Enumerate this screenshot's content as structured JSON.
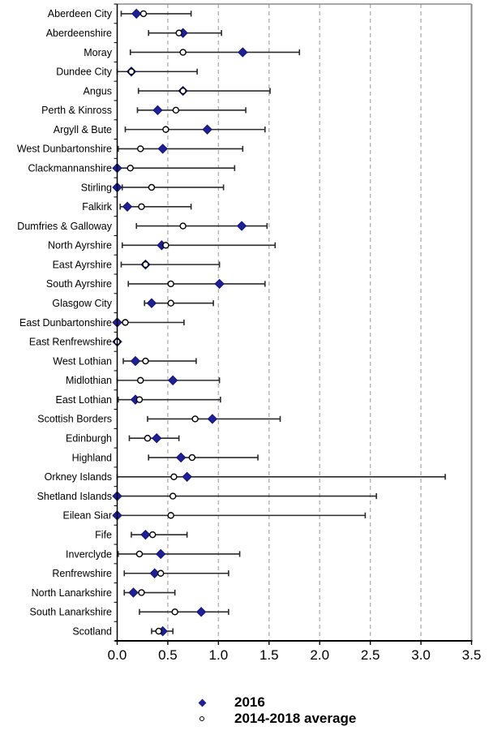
{
  "chart_data": {
    "type": "scatter",
    "subtype": "dot-plot-with-error-bars",
    "title": "",
    "xlabel": "",
    "ylabel": "",
    "x_axis": {
      "min": 0.0,
      "max": 3.5,
      "tick_step": 0.5,
      "tick_labels": [
        "0.0",
        "0.5",
        "1.0",
        "1.5",
        "2.0",
        "2.5",
        "3.0",
        "3.5"
      ],
      "gridlines": [
        0.5,
        1.0,
        1.5,
        2.0,
        2.5,
        3.0
      ],
      "grid_style": "dashed"
    },
    "legend": {
      "position": "bottom",
      "entries": [
        {
          "label": "2016",
          "marker": "filled-diamond",
          "color": "#1f1f96"
        },
        {
          "label": "2014-2018 average",
          "marker": "open-circle",
          "color": "#000000"
        }
      ]
    },
    "series_note": "Each row: filled diamond = 2016 value, open circle = 2014-2018 average, horizontal bar = confidence interval of the average",
    "rows": [
      {
        "category": "Aberdeen City",
        "y2016": 0.19,
        "avg": 0.26,
        "ci_low": 0.04,
        "ci_high": 0.73
      },
      {
        "category": "Aberdeenshire",
        "y2016": 0.65,
        "avg": 0.61,
        "ci_low": 0.31,
        "ci_high": 1.03
      },
      {
        "category": "Moray",
        "y2016": 1.24,
        "avg": 0.65,
        "ci_low": 0.13,
        "ci_high": 1.8
      },
      {
        "category": "Dundee City",
        "y2016": 0.14,
        "avg": 0.14,
        "ci_low": 0.0,
        "ci_high": 0.79
      },
      {
        "category": "Angus",
        "y2016": 0.65,
        "avg": 0.65,
        "ci_low": 0.21,
        "ci_high": 1.51
      },
      {
        "category": "Perth & Kinross",
        "y2016": 0.4,
        "avg": 0.58,
        "ci_low": 0.2,
        "ci_high": 1.27
      },
      {
        "category": "Argyll & Bute",
        "y2016": 0.89,
        "avg": 0.48,
        "ci_low": 0.08,
        "ci_high": 1.46
      },
      {
        "category": "West Dunbartonshire",
        "y2016": 0.45,
        "avg": 0.23,
        "ci_low": 0.01,
        "ci_high": 1.24
      },
      {
        "category": "Clackmannanshire",
        "y2016": 0.0,
        "avg": 0.13,
        "ci_low": 0.0,
        "ci_high": 1.16
      },
      {
        "category": "Stirling",
        "y2016": 0.0,
        "avg": 0.34,
        "ci_low": 0.05,
        "ci_high": 1.05
      },
      {
        "category": "Falkirk",
        "y2016": 0.1,
        "avg": 0.24,
        "ci_low": 0.03,
        "ci_high": 0.73
      },
      {
        "category": "Dumfries & Galloway",
        "y2016": 1.23,
        "avg": 0.65,
        "ci_low": 0.19,
        "ci_high": 1.48
      },
      {
        "category": "North Ayrshire",
        "y2016": 0.44,
        "avg": 0.48,
        "ci_low": 0.05,
        "ci_high": 1.56
      },
      {
        "category": "East Ayrshire",
        "y2016": 0.28,
        "avg": 0.28,
        "ci_low": 0.04,
        "ci_high": 1.01
      },
      {
        "category": "South Ayrshire",
        "y2016": 1.01,
        "avg": 0.53,
        "ci_low": 0.11,
        "ci_high": 1.46
      },
      {
        "category": "Glasgow City",
        "y2016": 0.34,
        "avg": 0.53,
        "ci_low": 0.27,
        "ci_high": 0.95
      },
      {
        "category": "East Dunbartonshire",
        "y2016": 0.0,
        "avg": 0.08,
        "ci_low": 0.0,
        "ci_high": 0.66
      },
      {
        "category": "East Renfrewshire",
        "y2016": 0.0,
        "avg": 0.0,
        "ci_low": 0.0,
        "ci_high": 0.0
      },
      {
        "category": "West Lothian",
        "y2016": 0.18,
        "avg": 0.28,
        "ci_low": 0.06,
        "ci_high": 0.78
      },
      {
        "category": "Midlothian",
        "y2016": 0.55,
        "avg": 0.23,
        "ci_low": 0.0,
        "ci_high": 1.01
      },
      {
        "category": "East Lothian",
        "y2016": 0.18,
        "avg": 0.22,
        "ci_low": 0.01,
        "ci_high": 1.02
      },
      {
        "category": "Scottish Borders",
        "y2016": 0.94,
        "avg": 0.77,
        "ci_low": 0.3,
        "ci_high": 1.61
      },
      {
        "category": "Edinburgh",
        "y2016": 0.39,
        "avg": 0.3,
        "ci_low": 0.12,
        "ci_high": 0.61
      },
      {
        "category": "Highland",
        "y2016": 0.63,
        "avg": 0.74,
        "ci_low": 0.31,
        "ci_high": 1.39
      },
      {
        "category": "Orkney Islands",
        "y2016": 0.69,
        "avg": 0.56,
        "ci_low": 0.0,
        "ci_high": 3.24
      },
      {
        "category": "Shetland Islands",
        "y2016": 0.0,
        "avg": 0.55,
        "ci_low": 0.0,
        "ci_high": 2.56
      },
      {
        "category": "Eilean Siar",
        "y2016": 0.0,
        "avg": 0.53,
        "ci_low": 0.0,
        "ci_high": 2.45
      },
      {
        "category": "Fife",
        "y2016": 0.28,
        "avg": 0.35,
        "ci_low": 0.14,
        "ci_high": 0.69
      },
      {
        "category": "Inverclyde",
        "y2016": 0.43,
        "avg": 0.22,
        "ci_low": 0.01,
        "ci_high": 1.21
      },
      {
        "category": "Renfrewshire",
        "y2016": 0.37,
        "avg": 0.43,
        "ci_low": 0.07,
        "ci_high": 1.1
      },
      {
        "category": "North Lanarkshire",
        "y2016": 0.16,
        "avg": 0.24,
        "ci_low": 0.07,
        "ci_high": 0.57
      },
      {
        "category": "South Lanarkshire",
        "y2016": 0.83,
        "avg": 0.57,
        "ci_low": 0.22,
        "ci_high": 1.1
      },
      {
        "category": "Scotland",
        "y2016": 0.45,
        "avg": 0.41,
        "ci_low": 0.34,
        "ci_high": 0.55
      }
    ],
    "colors": {
      "diamond_fill": "#1f1f96",
      "diamond_stroke": "#14147a",
      "circle_fill": "#ffffff",
      "circle_stroke": "#000000",
      "error_bar": "#2b2b2b",
      "gridline": "#b3b3b3",
      "frame": "#8c8c8c",
      "axis": "#000000",
      "label_text": "#000000"
    }
  },
  "legend": {
    "item1_label": "2016",
    "item2_label": "2014-2018 average"
  }
}
